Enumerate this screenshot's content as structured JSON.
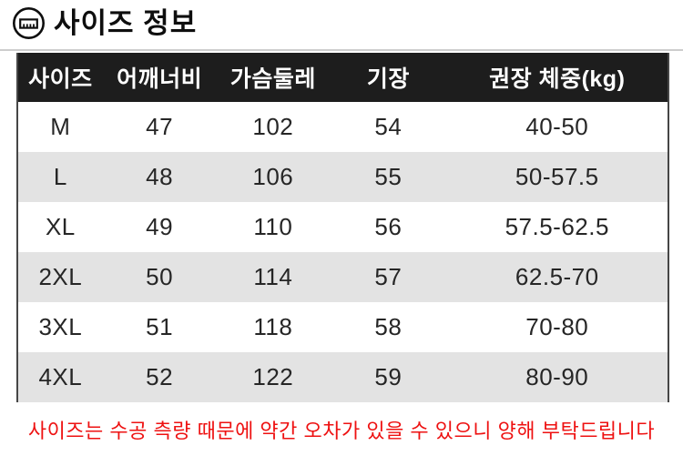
{
  "title": {
    "text": "사이즈 정보",
    "icon": "ruler-circle-icon"
  },
  "table": {
    "headers": [
      "사이즈",
      "어깨너비",
      "가슴둘레",
      "기장",
      "권장 체중(kg)"
    ],
    "column_keys": [
      "size",
      "shoulder-width",
      "chest-circumference",
      "length",
      "weight-range"
    ],
    "rows": [
      [
        "M",
        "47",
        "102",
        "54",
        "40-50"
      ],
      [
        "L",
        "48",
        "106",
        "55",
        "50-57.5"
      ],
      [
        "XL",
        "49",
        "110",
        "56",
        "57.5-62.5"
      ],
      [
        "2XL",
        "50",
        "114",
        "57",
        "62.5-70"
      ],
      [
        "3XL",
        "51",
        "118",
        "58",
        "70-80"
      ],
      [
        "4XL",
        "52",
        "122",
        "59",
        "80-90"
      ]
    ]
  },
  "note": {
    "text": "사이즈는 수공 측량 때문에 약간 오차가 있을 수 있으니 양해 부탁드립니다"
  },
  "colors": {
    "header_bg": "#1d1d1d",
    "header_text": "#ffffff",
    "row_alt_bg": "#e3e3e3",
    "row_bg": "#ffffff",
    "note_text": "#ee1111",
    "table_border": "#464646"
  }
}
